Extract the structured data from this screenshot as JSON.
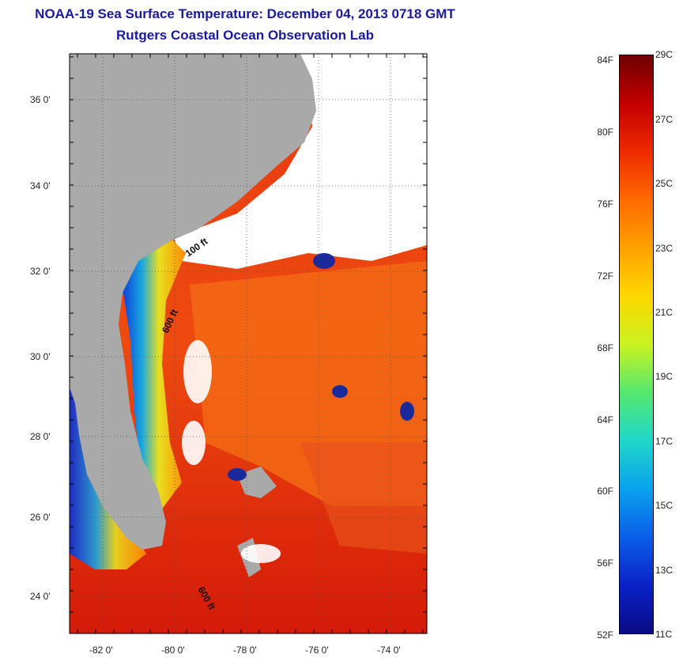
{
  "title": "NOAA-19 Sea Surface Temperature:  December 04, 2013 0718 GMT",
  "subtitle": "Rutgers Coastal Ocean Observation Lab",
  "map": {
    "lat_ticks": [
      "36 0'",
      "34 0'",
      "32 0'",
      "30 0'",
      "28 0'",
      "26 0'",
      "24 0'"
    ],
    "lon_ticks": [
      "-82 0'",
      "-80 0'",
      "-78 0'",
      "-76 0'",
      "-74 0'"
    ],
    "contour_labels": [
      "100 ft",
      "600 ft",
      "600 ft"
    ],
    "land_color": "#a9a9a9",
    "cloud_color": "#ffffff"
  },
  "colorbar": {
    "fahrenheit": [
      "84F",
      "80F",
      "76F",
      "72F",
      "68F",
      "64F",
      "60F",
      "56F",
      "52F"
    ],
    "celsius": [
      "29C",
      "27C",
      "25C",
      "23C",
      "21C",
      "19C",
      "17C",
      "15C",
      "13C",
      "11C"
    ],
    "colors": [
      "#6e0000",
      "#c40000",
      "#ee2a00",
      "#ff6a00",
      "#ffa100",
      "#ffd800",
      "#c9f21f",
      "#55e86f",
      "#1fd7c9",
      "#0aa2ee",
      "#0a5ee8",
      "#0a22c8",
      "#0a0a84"
    ]
  }
}
